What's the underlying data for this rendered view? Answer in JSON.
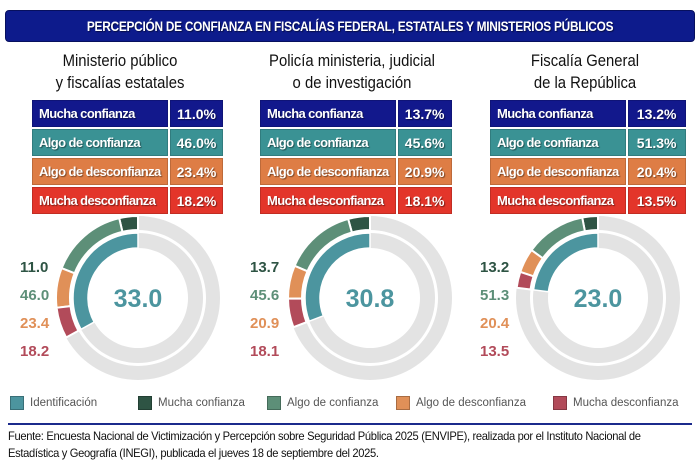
{
  "title": "PERCEPCIÓN DE CONFIANZA EN FISCALÍAS FEDERAL, ESTATALES Y MINISTERIOS PÚBLICOS",
  "colors": {
    "banner": "#0d1b8c",
    "row_mucha_confianza": "#12188c",
    "row_algo_confianza": "#3a9294",
    "row_algo_desconfianza": "#de7d45",
    "row_mucha_desconfianza": "#e3352a",
    "identificacion": "#4c959f",
    "mucha_confianza": "#2e5444",
    "algo_confianza": "#5d8f78",
    "algo_desconfianza": "#e09058",
    "mucha_desconfianza": "#b24b5a",
    "track": "#e3e3e3"
  },
  "chart_data": [
    {
      "type": "donut",
      "title": "Ministerio público y fiscalías estatales",
      "title_lines": [
        "Ministerio público",
        "y fiscalías estatales"
      ],
      "identificacion": 33.0,
      "categories": [
        "Mucha confianza",
        "Algo de confianza",
        "Algo de desconfianza",
        "Mucha desconfianza"
      ],
      "values": [
        11.0,
        46.0,
        23.4,
        18.2
      ],
      "value_labels": [
        "11.0%",
        "46.0%",
        "23.4%",
        "18.2%"
      ],
      "ring_labels": [
        "11.0",
        "46.0",
        "23.4",
        "18.2"
      ],
      "center_label": "33.0"
    },
    {
      "type": "donut",
      "title": "Policía ministeria, judicial o de investigación",
      "title_lines": [
        "Policía ministeria, judicial",
        "o de investigación"
      ],
      "identificacion": 30.8,
      "categories": [
        "Mucha confianza",
        "Algo de confianza",
        "Algo de desconfianza",
        "Mucha desconfianza"
      ],
      "values": [
        13.7,
        45.6,
        20.9,
        18.1
      ],
      "value_labels": [
        "13.7%",
        "45.6%",
        "20.9%",
        "18.1%"
      ],
      "ring_labels": [
        "13.7",
        "45.6",
        "20.9",
        "18.1"
      ],
      "center_label": "30.8"
    },
    {
      "type": "donut",
      "title": "Fiscalía General de la República",
      "title_lines": [
        "Fiscalía General",
        "de la República"
      ],
      "identificacion": 23.0,
      "categories": [
        "Mucha confianza",
        "Algo de confianza",
        "Algo de desconfianza",
        "Mucha desconfianza"
      ],
      "values": [
        13.2,
        51.3,
        20.4,
        13.5
      ],
      "value_labels": [
        "13.2%",
        "51.3%",
        "20.4%",
        "13.5%"
      ],
      "ring_labels": [
        "13.2",
        "51.3",
        "20.4",
        "13.5"
      ],
      "center_label": "23.0"
    }
  ],
  "legend": [
    "Identificación",
    "Mucha confianza",
    "Algo de confianza",
    "Algo de desconfianza",
    "Mucha desconfianza"
  ],
  "legend_placement": "bottom",
  "source": "Fuente: Encuesta Nacional de Victimización y Percepción sobre Seguridad Pública 2025 (ENVIPE), realizada por el Instituto Nacional de Estadística y Geografía (INEGI), publicada el jueves 18 de septiembre del 2025."
}
